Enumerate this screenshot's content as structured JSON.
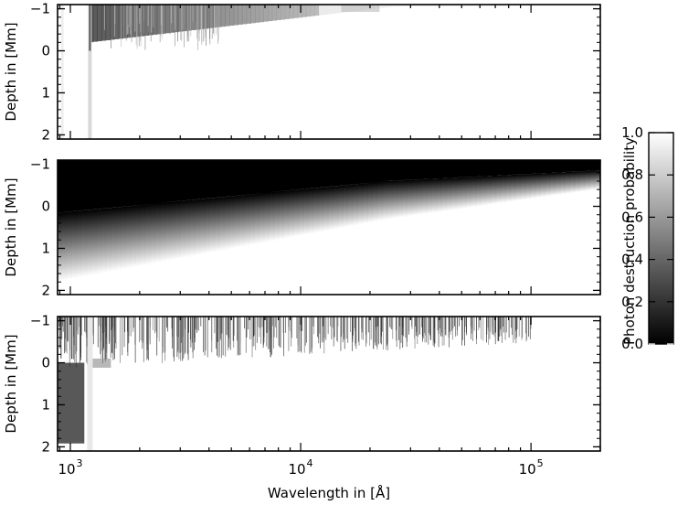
{
  "chart_data": [
    {
      "type": "heatmap",
      "panel": "top",
      "ylabel": "Depth in [Mm]",
      "ylim": [
        2.1,
        -1.1
      ],
      "yticks": [
        -1,
        0,
        1,
        2
      ],
      "xscale": "log",
      "xlim": [
        880,
        200000
      ],
      "colormap": "gray",
      "zlim": [
        0.0,
        1.0
      ]
    },
    {
      "type": "heatmap",
      "panel": "middle",
      "ylabel": "Depth in [Mm]",
      "ylim": [
        2.1,
        -1.1
      ],
      "yticks": [
        -1,
        0,
        1,
        2
      ],
      "xscale": "log",
      "xlim": [
        880,
        200000
      ],
      "colormap": "gray",
      "zlim": [
        0.0,
        1.0
      ]
    },
    {
      "type": "heatmap",
      "panel": "bottom",
      "ylabel": "Depth in [Mm]",
      "xlabel": "Wavelength in [Å]",
      "ylim": [
        2.1,
        -1.1
      ],
      "yticks": [
        -1,
        0,
        1,
        2
      ],
      "xscale": "log",
      "xlim": [
        880,
        200000
      ],
      "xticks": [
        1000,
        10000,
        100000
      ],
      "xtick_labels": [
        {
          "base": "10",
          "exp": "3"
        },
        {
          "base": "10",
          "exp": "4"
        },
        {
          "base": "10",
          "exp": "5"
        }
      ],
      "colormap": "gray",
      "zlim": [
        0.0,
        1.0
      ]
    }
  ],
  "colorbar": {
    "label": "Photon destruction probability",
    "ticks": [
      0.0,
      0.2,
      0.4,
      0.6,
      0.8,
      1.0
    ],
    "tick_labels": [
      "0.0",
      "0.2",
      "0.4",
      "0.6",
      "0.8",
      "1.0"
    ]
  }
}
